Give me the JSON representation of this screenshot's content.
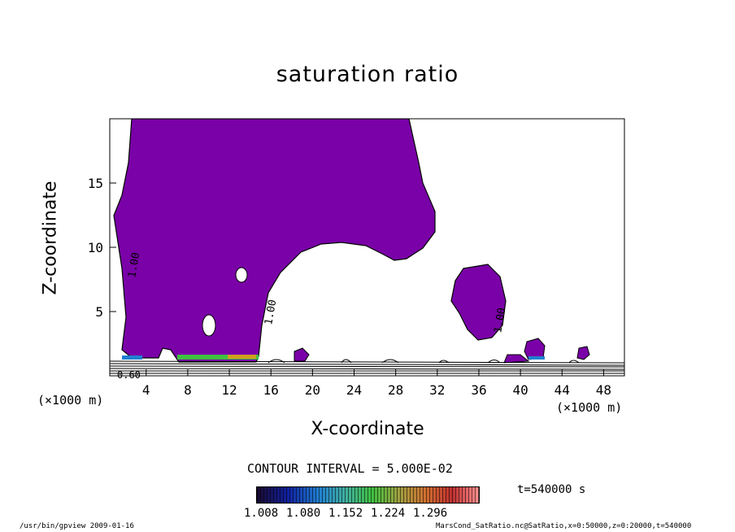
{
  "chart_data": {
    "type": "heatmap",
    "title": "saturation ratio",
    "xlabel": "X-coordinate",
    "ylabel": "Z-coordinate",
    "x_unit": "(×1000 m)",
    "xlim": [
      0.5,
      50
    ],
    "ylim": [
      0,
      20
    ],
    "x_ticks": [
      4,
      8,
      12,
      16,
      20,
      24,
      28,
      32,
      36,
      40,
      44,
      48
    ],
    "y_ticks": [
      5,
      10,
      15
    ],
    "contour_labels": [
      "1.00",
      "1.00",
      "1.00",
      "0.60"
    ],
    "contour_interval_text": "CONTOUR INTERVAL = 5.000E-02",
    "colorbar": {
      "ticks": [
        "1.008",
        "1.080",
        "1.152",
        "1.224",
        "1.296"
      ],
      "range": [
        1.008,
        1.296
      ],
      "colors": [
        "#1a0a30",
        "#1020a0",
        "#2080d0",
        "#40b0a0",
        "#40c040",
        "#a0a040",
        "#d07030",
        "#c03030",
        "#ff9090"
      ]
    },
    "fill_color": "#7a00a8",
    "time_label": "t=540000 s"
  },
  "footer": {
    "left": "/usr/bin/gpview   2009-01-16",
    "right": "MarsCond_SatRatio.nc@SatRatio,x=0:50000,z=0:20000,t=540000"
  }
}
